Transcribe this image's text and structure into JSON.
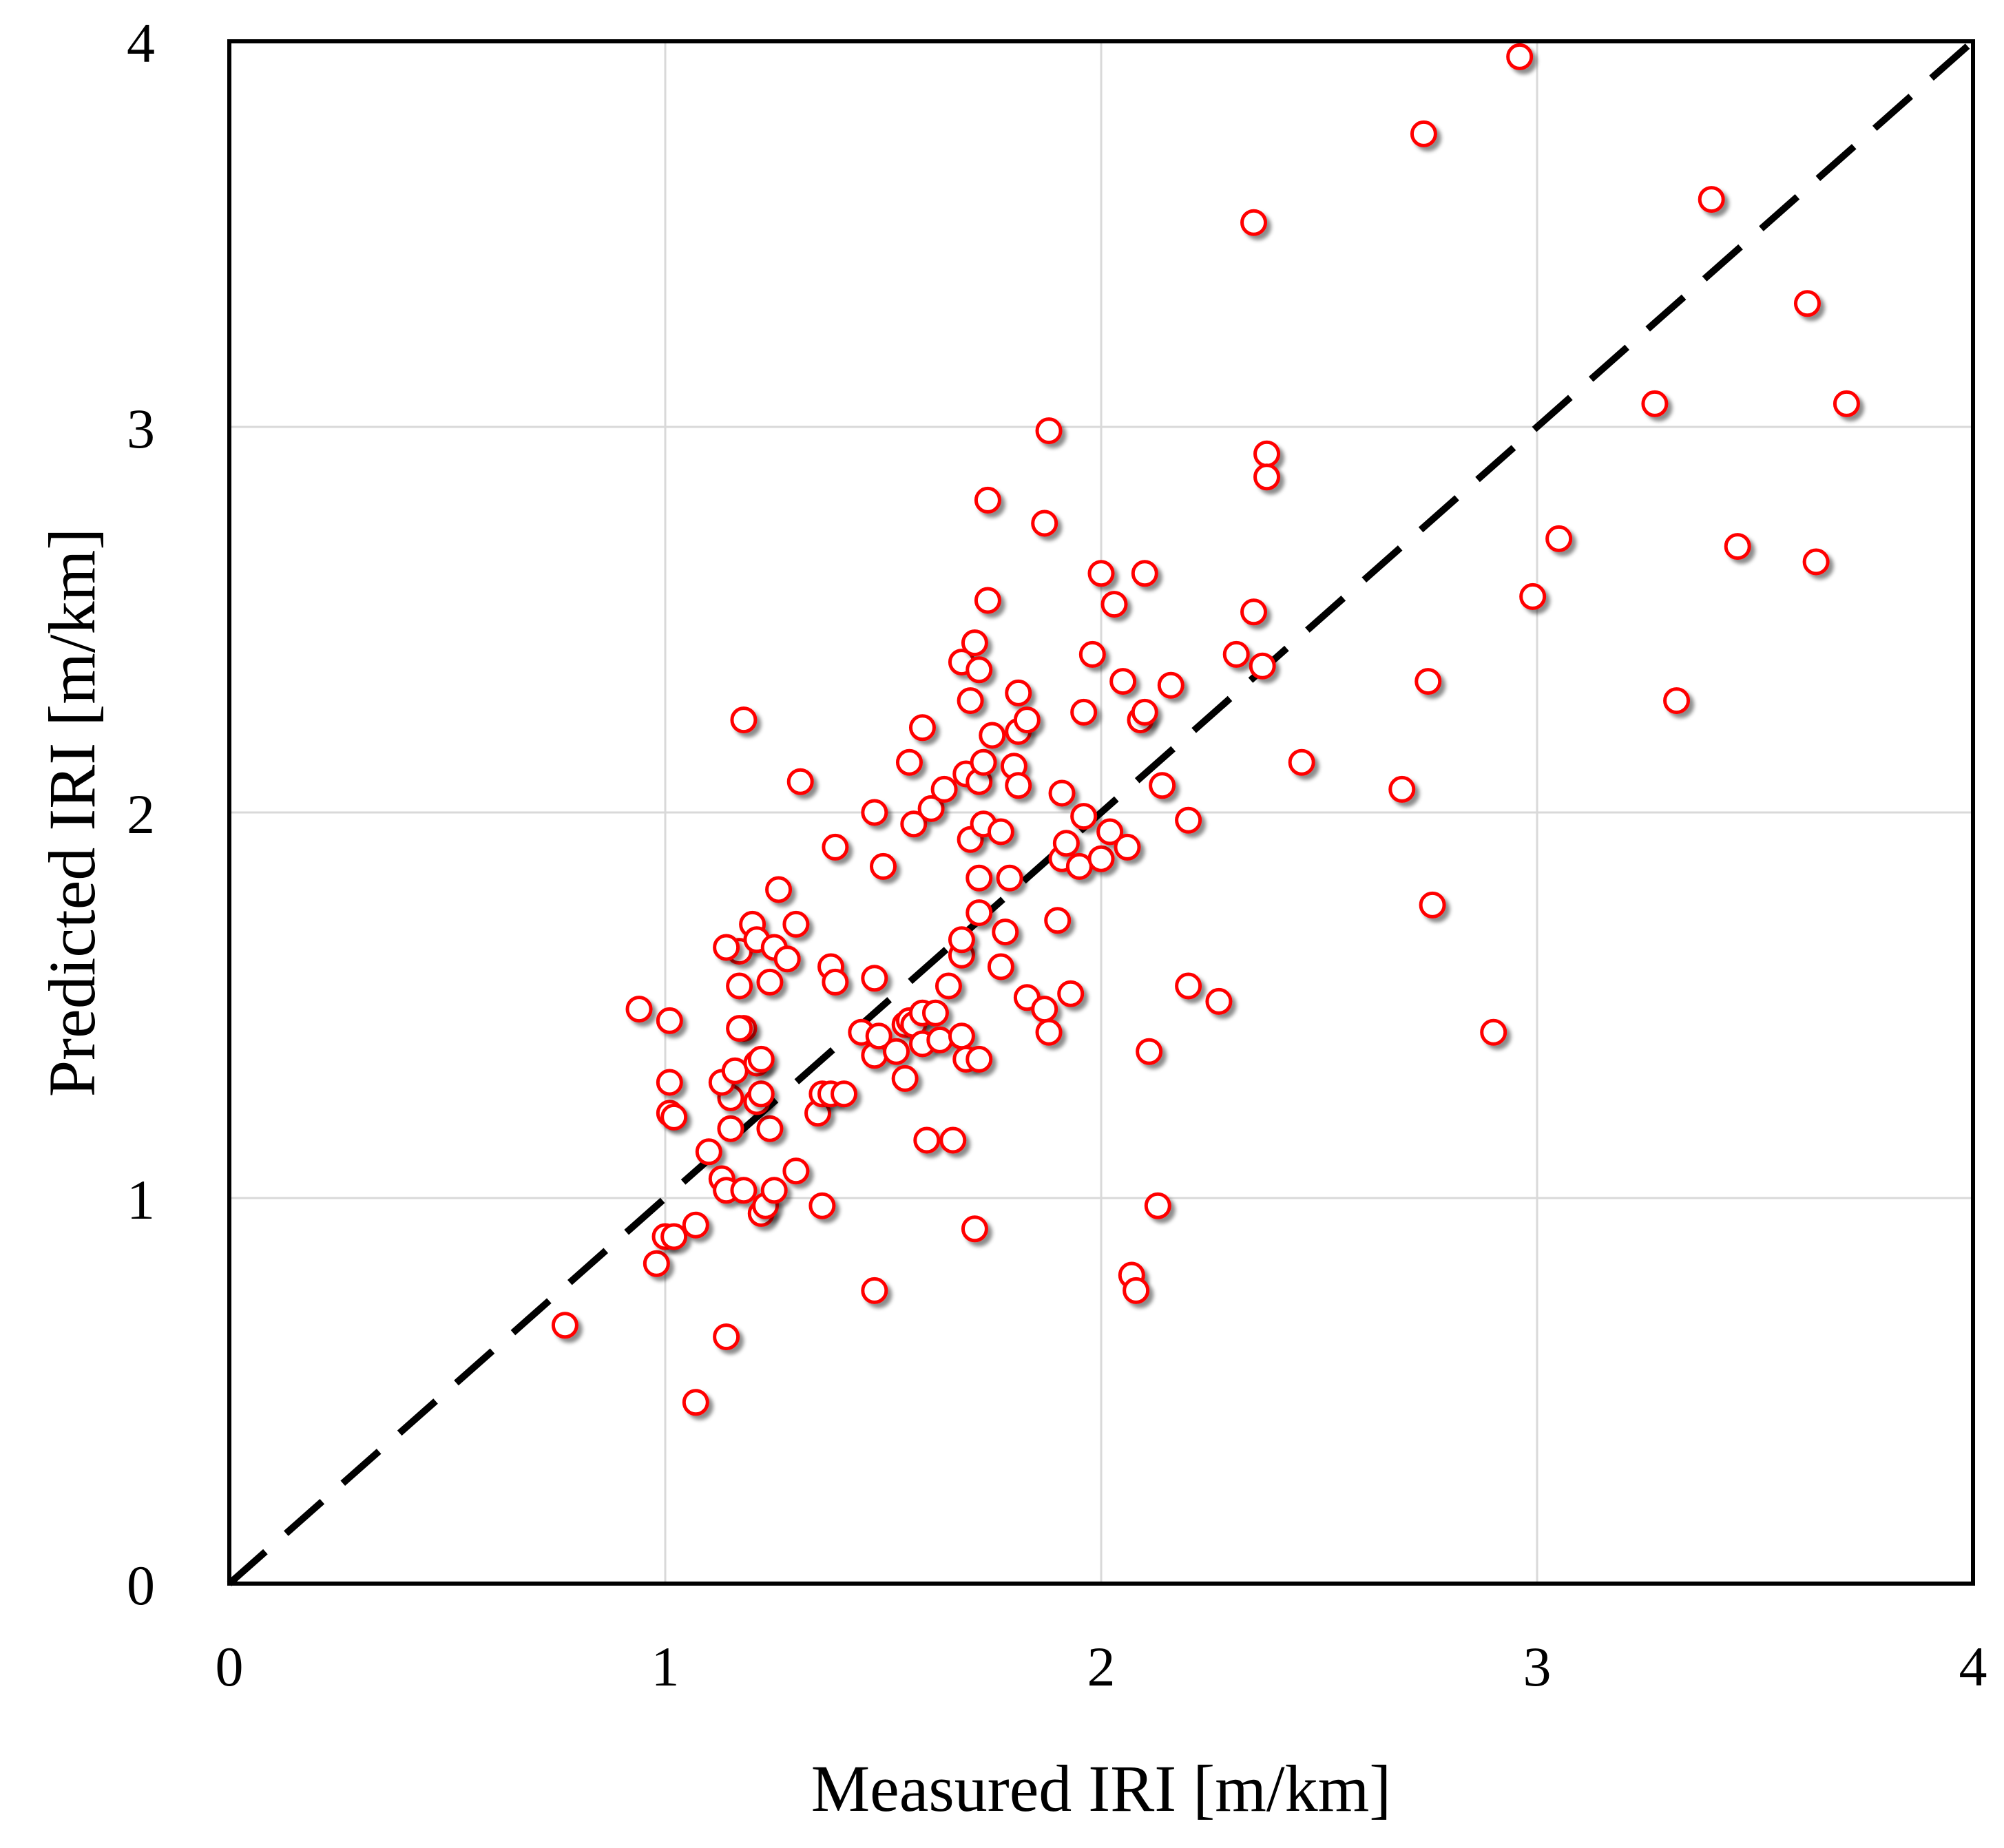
{
  "chart_data": {
    "type": "scatter",
    "title": "",
    "xlabel": "Measured IRI [m/km]",
    "ylabel": "Predicted IRI [m/km]",
    "xlim": [
      0,
      4
    ],
    "ylim": [
      0,
      4
    ],
    "xticks": [
      "0",
      "1",
      "2",
      "3",
      "4"
    ],
    "yticks": [
      "0",
      "1",
      "2",
      "3",
      "4"
    ],
    "grid": true,
    "marker_color": "#ff0000",
    "reference_line": {
      "style": "dashed",
      "color": "#000000",
      "from": [
        0,
        0
      ],
      "to": [
        4,
        4
      ]
    },
    "series": [
      {
        "name": "IRI",
        "points": [
          [
            0.77,
            0.67
          ],
          [
            1.07,
            0.47
          ],
          [
            1.14,
            0.64
          ],
          [
            0.98,
            0.83
          ],
          [
            1.0,
            0.9
          ],
          [
            1.02,
            0.9
          ],
          [
            1.07,
            0.93
          ],
          [
            1.48,
            0.76
          ],
          [
            0.94,
            1.49
          ],
          [
            1.01,
            1.46
          ],
          [
            1.01,
            1.22
          ],
          [
            1.02,
            1.21
          ],
          [
            1.01,
            1.3
          ],
          [
            1.1,
            1.12
          ],
          [
            1.13,
            1.05
          ],
          [
            1.14,
            1.02
          ],
          [
            1.15,
            1.18
          ],
          [
            1.15,
            1.26
          ],
          [
            1.13,
            1.3
          ],
          [
            1.16,
            1.33
          ],
          [
            1.18,
            1.44
          ],
          [
            1.17,
            1.44
          ],
          [
            1.17,
            1.55
          ],
          [
            1.17,
            1.64
          ],
          [
            1.14,
            1.65
          ],
          [
            1.2,
            1.71
          ],
          [
            1.21,
            1.67
          ],
          [
            1.18,
            1.02
          ],
          [
            1.22,
            0.96
          ],
          [
            1.23,
            0.98
          ],
          [
            1.25,
            1.02
          ],
          [
            1.24,
            1.18
          ],
          [
            1.21,
            1.25
          ],
          [
            1.22,
            1.27
          ],
          [
            1.21,
            1.35
          ],
          [
            1.22,
            1.36
          ],
          [
            1.24,
            1.56
          ],
          [
            1.25,
            1.65
          ],
          [
            1.28,
            1.62
          ],
          [
            1.26,
            1.8
          ],
          [
            1.3,
            1.71
          ],
          [
            1.3,
            1.07
          ],
          [
            1.18,
            2.24
          ],
          [
            1.31,
            2.08
          ],
          [
            1.36,
            0.98
          ],
          [
            1.35,
            1.22
          ],
          [
            1.36,
            1.27
          ],
          [
            1.38,
            1.27
          ],
          [
            1.41,
            1.27
          ],
          [
            1.38,
            1.6
          ],
          [
            1.39,
            1.56
          ],
          [
            1.39,
            1.91
          ],
          [
            1.45,
            1.43
          ],
          [
            1.48,
            1.37
          ],
          [
            1.48,
            1.57
          ],
          [
            1.48,
            2.0
          ],
          [
            1.5,
            1.86
          ],
          [
            1.49,
            1.42
          ],
          [
            1.53,
            1.38
          ],
          [
            1.55,
            1.31
          ],
          [
            1.55,
            1.45
          ],
          [
            1.56,
            1.46
          ],
          [
            1.57,
            1.45
          ],
          [
            1.59,
            1.48
          ],
          [
            1.6,
            1.15
          ],
          [
            1.59,
            1.4
          ],
          [
            1.62,
            1.48
          ],
          [
            1.63,
            1.41
          ],
          [
            1.56,
            2.13
          ],
          [
            1.57,
            1.97
          ],
          [
            1.59,
            2.22
          ],
          [
            1.61,
            2.01
          ],
          [
            1.64,
            2.06
          ],
          [
            1.65,
            1.55
          ],
          [
            1.66,
            1.15
          ],
          [
            1.68,
            1.42
          ],
          [
            1.69,
            1.36
          ],
          [
            1.68,
            1.63
          ],
          [
            1.68,
            1.67
          ],
          [
            1.7,
            1.93
          ],
          [
            1.69,
            2.1
          ],
          [
            1.68,
            2.39
          ],
          [
            1.7,
            2.29
          ],
          [
            1.71,
            2.44
          ],
          [
            1.72,
            2.37
          ],
          [
            1.72,
            1.36
          ],
          [
            1.71,
            0.92
          ],
          [
            1.72,
            1.74
          ],
          [
            1.72,
            1.83
          ],
          [
            1.73,
            1.97
          ],
          [
            1.72,
            2.08
          ],
          [
            1.73,
            2.13
          ],
          [
            1.74,
            2.55
          ],
          [
            1.75,
            2.2
          ],
          [
            1.74,
            2.81
          ],
          [
            1.77,
            1.6
          ],
          [
            1.78,
            1.69
          ],
          [
            1.79,
            1.83
          ],
          [
            1.77,
            1.95
          ],
          [
            1.8,
            2.12
          ],
          [
            1.81,
            2.07
          ],
          [
            1.81,
            2.21
          ],
          [
            1.81,
            2.31
          ],
          [
            1.83,
            2.24
          ],
          [
            1.83,
            1.52
          ],
          [
            1.87,
            1.49
          ],
          [
            1.88,
            1.43
          ],
          [
            1.88,
            2.99
          ],
          [
            1.87,
            2.75
          ],
          [
            1.9,
            1.72
          ],
          [
            1.91,
            1.88
          ],
          [
            1.92,
            1.92
          ],
          [
            1.91,
            2.05
          ],
          [
            1.93,
            1.53
          ],
          [
            1.95,
            1.86
          ],
          [
            1.96,
            1.99
          ],
          [
            1.96,
            2.26
          ],
          [
            1.98,
            2.41
          ],
          [
            2.0,
            1.88
          ],
          [
            2.02,
            1.95
          ],
          [
            2.0,
            2.62
          ],
          [
            2.03,
            2.54
          ],
          [
            2.05,
            2.34
          ],
          [
            2.06,
            1.91
          ],
          [
            2.07,
            0.8
          ],
          [
            2.08,
            0.76
          ],
          [
            2.09,
            2.24
          ],
          [
            2.1,
            2.26
          ],
          [
            2.1,
            2.62
          ],
          [
            2.11,
            1.38
          ],
          [
            2.13,
            0.98
          ],
          [
            2.14,
            2.07
          ],
          [
            2.16,
            2.33
          ],
          [
            2.2,
            1.98
          ],
          [
            2.2,
            1.55
          ],
          [
            2.27,
            1.51
          ],
          [
            2.31,
            2.41
          ],
          [
            2.35,
            2.52
          ],
          [
            2.37,
            2.38
          ],
          [
            2.38,
            2.93
          ],
          [
            2.38,
            2.87
          ],
          [
            2.35,
            3.53
          ],
          [
            2.46,
            2.13
          ],
          [
            2.69,
            2.06
          ],
          [
            2.74,
            3.76
          ],
          [
            2.75,
            2.34
          ],
          [
            2.76,
            1.76
          ],
          [
            2.9,
            1.43
          ],
          [
            2.96,
            3.96
          ],
          [
            2.99,
            2.56
          ],
          [
            3.05,
            2.71
          ],
          [
            3.27,
            3.06
          ],
          [
            3.32,
            2.29
          ],
          [
            3.4,
            3.59
          ],
          [
            3.46,
            2.69
          ],
          [
            3.62,
            3.32
          ],
          [
            3.64,
            2.65
          ],
          [
            3.71,
            3.06
          ]
        ]
      }
    ]
  }
}
